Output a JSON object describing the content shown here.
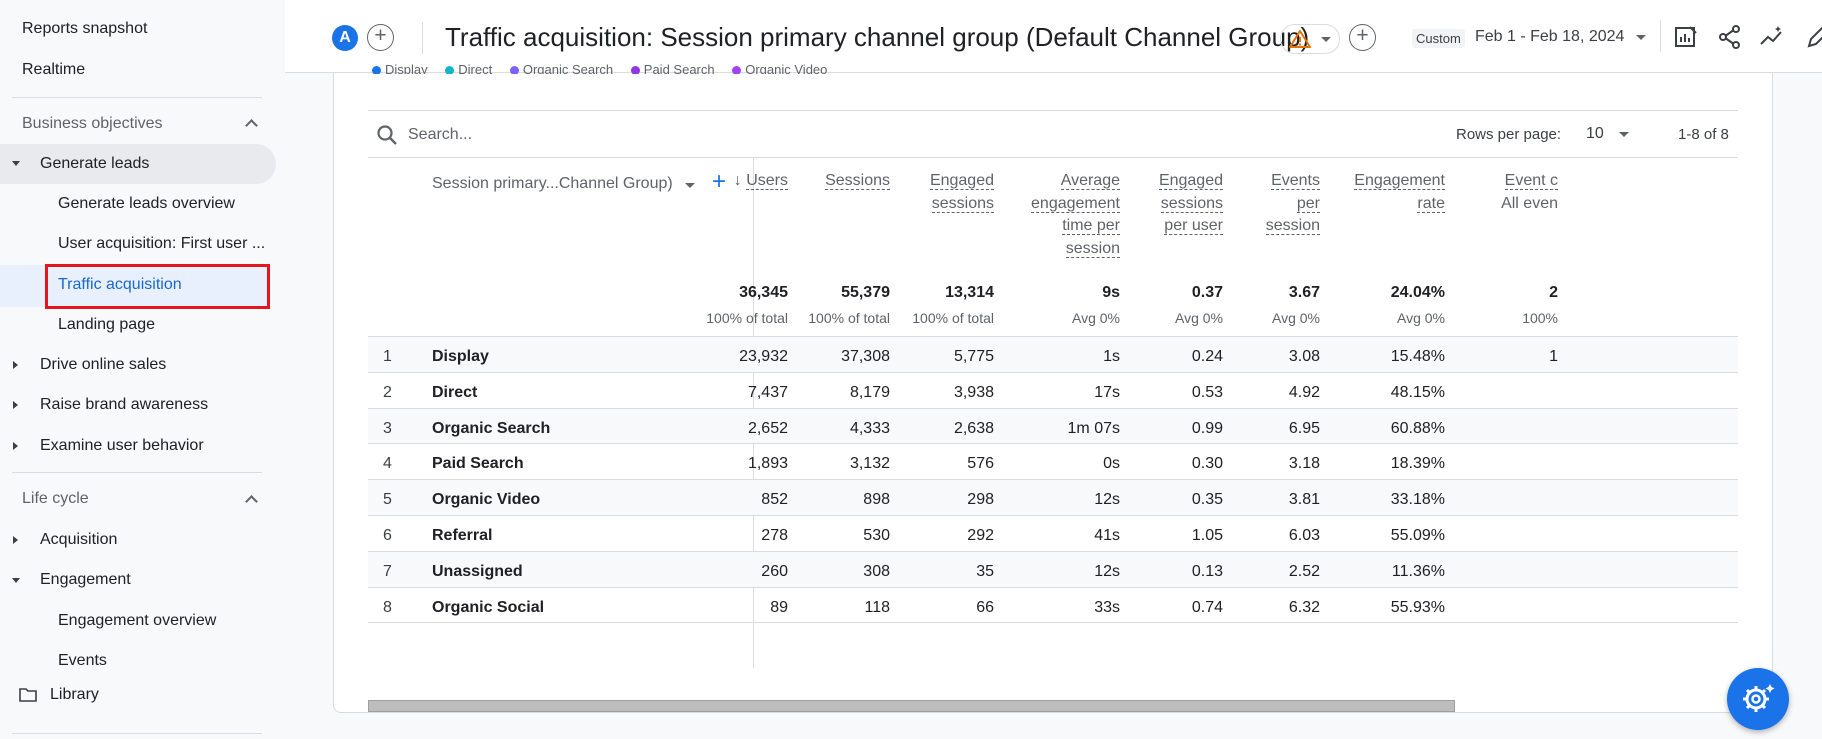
{
  "sidebar": {
    "top_items": [
      "Reports snapshot",
      "Realtime"
    ],
    "business_section": "Business objectives",
    "generate_leads": "Generate leads",
    "generate_leads_items": [
      "Generate leads overview",
      "User acquisition: First user ...",
      "Traffic acquisition",
      "Landing page"
    ],
    "categories": [
      "Drive online sales",
      "Raise brand awareness",
      "Examine user behavior"
    ],
    "lifecycle_section": "Life cycle",
    "acquisition": "Acquisition",
    "engagement": "Engagement",
    "engagement_items": [
      "Engagement overview",
      "Events"
    ],
    "library": "Library"
  },
  "header": {
    "avatar_letter": "A",
    "title": "Traffic acquisition: Session primary channel group (Default Channel Group)",
    "custom_label": "Custom",
    "date_range": "Feb 1 - Feb 18, 2024"
  },
  "legend": [
    {
      "name": "Display",
      "color": "#1a73e8"
    },
    {
      "name": "Direct",
      "color": "#12b5cb"
    },
    {
      "name": "Organic Search",
      "color": "#7b61ff"
    },
    {
      "name": "Paid Search",
      "color": "#9334e6"
    },
    {
      "name": "Organic Video",
      "color": "#a142f4"
    }
  ],
  "toolbar": {
    "search_placeholder": "Search...",
    "rows_per_page_label": "Rows per page:",
    "rows_per_page_value": "10",
    "page_info": "1-8 of 8"
  },
  "table": {
    "dimension_header": "Session primary...Channel Group)",
    "columns": [
      {
        "label": [
          "Users"
        ],
        "sorted": true
      },
      {
        "label": [
          "Sessions"
        ]
      },
      {
        "label": [
          "Engaged",
          "sessions"
        ]
      },
      {
        "label": [
          "Average",
          "engagement",
          "time per",
          "session"
        ]
      },
      {
        "label": [
          "Engaged",
          "sessions",
          "per user"
        ]
      },
      {
        "label": [
          "Events",
          "per",
          "session"
        ]
      },
      {
        "label": [
          "Engagement",
          "rate"
        ]
      },
      {
        "label": [
          "Event c"
        ],
        "sub": "All even"
      }
    ],
    "totals": [
      "36,345",
      "55,379",
      "13,314",
      "9s",
      "0.37",
      "3.67",
      "24.04%",
      "2"
    ],
    "totals_sub": [
      "100% of total",
      "100% of total",
      "100% of total",
      "Avg 0%",
      "Avg 0%",
      "Avg 0%",
      "Avg 0%",
      "100%"
    ],
    "rows": [
      {
        "idx": "1",
        "name": "Display",
        "values": [
          "23,932",
          "37,308",
          "5,775",
          "1s",
          "0.24",
          "3.08",
          "15.48%",
          "1"
        ]
      },
      {
        "idx": "2",
        "name": "Direct",
        "values": [
          "7,437",
          "8,179",
          "3,938",
          "17s",
          "0.53",
          "4.92",
          "48.15%",
          ""
        ]
      },
      {
        "idx": "3",
        "name": "Organic Search",
        "values": [
          "2,652",
          "4,333",
          "2,638",
          "1m 07s",
          "0.99",
          "6.95",
          "60.88%",
          ""
        ]
      },
      {
        "idx": "4",
        "name": "Paid Search",
        "values": [
          "1,893",
          "3,132",
          "576",
          "0s",
          "0.30",
          "3.18",
          "18.39%",
          ""
        ]
      },
      {
        "idx": "5",
        "name": "Organic Video",
        "values": [
          "852",
          "898",
          "298",
          "12s",
          "0.35",
          "3.81",
          "33.18%",
          ""
        ]
      },
      {
        "idx": "6",
        "name": "Referral",
        "values": [
          "278",
          "530",
          "292",
          "41s",
          "1.05",
          "6.03",
          "55.09%",
          ""
        ]
      },
      {
        "idx": "7",
        "name": "Unassigned",
        "values": [
          "260",
          "308",
          "35",
          "12s",
          "0.13",
          "2.52",
          "11.36%",
          ""
        ]
      },
      {
        "idx": "8",
        "name": "Organic Social",
        "values": [
          "89",
          "118",
          "66",
          "33s",
          "0.74",
          "6.32",
          "55.93%",
          ""
        ]
      }
    ]
  }
}
